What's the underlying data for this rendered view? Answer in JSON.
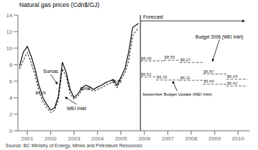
{
  "chart_data": {
    "type": "line",
    "title": "Natural gas prices (Cdn$/GJ)",
    "source": "Source:  BC Ministry of Energy, Mines and Petroleum Resources",
    "xlim": [
      2000.6,
      2010.5
    ],
    "ylim": [
      0,
      14
    ],
    "xticks": [
      2001,
      2002,
      2003,
      2004,
      2005,
      2006,
      2007,
      2008,
      2009,
      2010
    ],
    "yticks": [
      0,
      2,
      4,
      6,
      8,
      10,
      12,
      14
    ],
    "series": [
      {
        "name": "Sumas",
        "color": "#000000",
        "line_style": "solid",
        "x": [
          2000.67,
          2000.83,
          2001.0,
          2001.17,
          2001.33,
          2001.5,
          2001.67,
          2001.83,
          2002.0,
          2002.17,
          2002.33,
          2002.5,
          2002.67,
          2002.83,
          2003.0,
          2003.17,
          2003.33,
          2003.5,
          2003.67,
          2003.83,
          2004.0,
          2004.17,
          2004.33,
          2004.5,
          2004.67,
          2004.83,
          2005.0,
          2005.17,
          2005.33,
          2005.5,
          2005.75
        ],
        "values": [
          7.8,
          9.5,
          10.2,
          9.0,
          7.5,
          5.5,
          4.0,
          3.2,
          2.5,
          2.8,
          4.2,
          8.3,
          7.0,
          5.0,
          4.0,
          4.5,
          5.2,
          5.5,
          5.3,
          5.0,
          5.3,
          5.5,
          5.8,
          6.0,
          6.2,
          5.5,
          6.5,
          7.5,
          9.5,
          12.5,
          13.0
        ]
      },
      {
        "name": "WEI Inlet",
        "color": "#000000",
        "line_style": "dashed",
        "x": [
          2000.67,
          2000.83,
          2001.0,
          2001.17,
          2001.33,
          2001.5,
          2001.67,
          2001.83,
          2002.0,
          2002.17,
          2002.33,
          2002.5,
          2002.67,
          2002.83,
          2003.0,
          2003.17,
          2003.33,
          2003.5,
          2003.67,
          2003.83,
          2004.0,
          2004.17,
          2004.33,
          2004.5,
          2004.67,
          2004.83,
          2005.0,
          2005.17,
          2005.33,
          2005.5,
          2005.75
        ],
        "values": [
          7.5,
          8.5,
          9.5,
          8.2,
          6.8,
          4.8,
          3.5,
          2.8,
          2.2,
          2.5,
          3.8,
          7.5,
          6.5,
          4.5,
          3.8,
          4.2,
          4.9,
          5.2,
          5.0,
          4.8,
          5.0,
          5.2,
          5.5,
          5.7,
          5.9,
          5.2,
          6.2,
          7.0,
          8.5,
          11.5,
          12.5
        ]
      },
      {
        "name": "Budget 2006 (WEI Inlet)",
        "type": "step",
        "color": "#666666",
        "line_style": "dashed",
        "x_start": [
          2005.83,
          2006.83,
          2007.5,
          2008.5,
          2009.5
        ],
        "x_end": [
          2006.83,
          2007.5,
          2008.5,
          2009.5,
          2010.4
        ],
        "values": [
          8.45,
          8.55,
          8.27,
          6.87,
          6.24
        ],
        "value_labels": [
          "$8.45",
          "$8.55",
          "$8.27",
          "$6.87",
          "$6.24"
        ],
        "data_labels": true
      },
      {
        "name": "September Budget Update (WEI Inlet)",
        "type": "step",
        "color": "#666666",
        "line_style": "dashed",
        "x_start": [
          2005.83,
          2006.5,
          2007.5,
          2008.5,
          2009.5
        ],
        "x_end": [
          2006.5,
          2007.5,
          2008.5,
          2009.5,
          2010.4
        ],
        "values": [
          6.51,
          6.15,
          6.11,
          5.64,
          5.42
        ],
        "value_labels": [
          "$6.51",
          "$6.15",
          "$6.11",
          "$5.64",
          "$5.42"
        ],
        "data_labels": true
      }
    ],
    "vlines": [
      {
        "x": 2005.83,
        "label": "Forecast"
      }
    ],
    "annotations": [
      {
        "text": "$4.25",
        "x": 2001.35,
        "y": 4.35
      },
      {
        "text": "$5.06",
        "x": 2003.25,
        "y": 4.85
      },
      {
        "text": "$5.61",
        "x": 2004.6,
        "y": 5.71
      }
    ]
  }
}
